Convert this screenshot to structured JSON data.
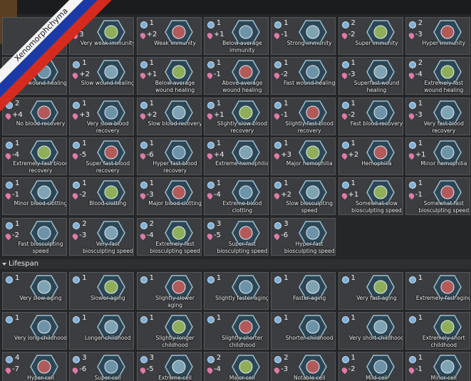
{
  "banner": "Xenomorphchyma",
  "sections": [
    {
      "genes": [
        {},
        {
          "metabolism": "3",
          "label": "Very weak immunity"
        },
        {
          "complexity": "1",
          "metabolism": "+2",
          "label": "Weak immunity"
        },
        {
          "complexity": "1",
          "metabolism": "+1",
          "label": "Below average immunity"
        },
        {
          "complexity": "1",
          "metabolism": "-1",
          "label": "Strong immunity"
        },
        {
          "complexity": "2",
          "metabolism": "-2",
          "label": "Super immunity"
        },
        {
          "complexity": "2",
          "metabolism": "-3",
          "label": "Hyper immunity"
        },
        {
          "label": "slow wound healing"
        },
        {
          "complexity": "1",
          "metabolism": "+2",
          "label": "Slow wound healing"
        },
        {
          "complexity": "1",
          "metabolism": "+1",
          "label": "Below average wound healing"
        },
        {
          "complexity": "1",
          "metabolism": "-1",
          "label": "Above average wound healing"
        },
        {
          "complexity": "1",
          "metabolism": "-2",
          "label": "Fast wound healing"
        },
        {
          "complexity": "1",
          "metabolism": "-3",
          "label": "Superfast wound healing"
        },
        {
          "complexity": "2",
          "metabolism": "-4",
          "label": "Extremely fast wound healing"
        },
        {
          "complexity": "2",
          "metabolism": "+4",
          "label": "No blood recovery"
        },
        {
          "complexity": "1",
          "metabolism": "+3",
          "label": "Very slow blood recovery"
        },
        {
          "complexity": "1",
          "metabolism": "+2",
          "label": "Slow blood recovery"
        },
        {
          "complexity": "1",
          "metabolism": "+1",
          "label": "Slightly slow blood recovery"
        },
        {
          "complexity": "1",
          "metabolism": "-1",
          "label": "Slightly fast blood recovery"
        },
        {
          "complexity": "1",
          "metabolism": "-2",
          "label": "Fast blood recovery"
        },
        {
          "complexity": "1",
          "metabolism": "-3",
          "label": "Very fast blood recovery"
        },
        {
          "complexity": "1",
          "metabolism": "-4",
          "label": "Extremely fast blood recovery"
        },
        {
          "complexity": "1",
          "metabolism": "-5",
          "label": "Super fast blood recovery"
        },
        {
          "complexity": "1",
          "metabolism": "-6",
          "label": "Hyper fast blood recovery"
        },
        {
          "complexity": "1",
          "metabolism": "+4",
          "label": "Extreme hemophilia"
        },
        {
          "complexity": "1",
          "metabolism": "+3",
          "label": "Major hemophilia"
        },
        {
          "complexity": "1",
          "metabolism": "+2",
          "label": "Hemophilia"
        },
        {
          "complexity": "1",
          "metabolism": "+1",
          "label": "Minor hemophilia"
        },
        {
          "complexity": "1",
          "metabolism": "-1",
          "label": "Minor blood clotting"
        },
        {
          "complexity": "1",
          "metabolism": "-2",
          "label": "Blood clotting"
        },
        {
          "complexity": "1",
          "metabolism": "-3",
          "label": "Major blood clotting"
        },
        {
          "complexity": "1",
          "metabolism": "-4",
          "label": "Extreme blood clotting"
        },
        {
          "complexity": "1",
          "metabolism": "+2",
          "label": "Slow biosculpting speed"
        },
        {
          "complexity": "1",
          "metabolism": "+1",
          "label": "Somewhat slow biosculpting speed"
        },
        {
          "complexity": "1",
          "metabolism": "-1",
          "label": "Somewhat fast biosculpting speed"
        },
        {
          "complexity": "1",
          "metabolism": "-2",
          "label": "Fast biosculpting speed"
        },
        {
          "complexity": "2",
          "metabolism": "-3",
          "label": "Very fast biosculpting speed"
        },
        {
          "complexity": "2",
          "metabolism": "-4",
          "label": "Extremely fast biosculpting speed"
        },
        {
          "complexity": "3",
          "metabolism": "-5",
          "label": "Super fast biosculpting speed"
        },
        {
          "complexity": "3",
          "metabolism": "-6",
          "label": "Hyper fast biosculpting speed"
        }
      ]
    },
    {
      "title": "Lifespan",
      "genes": [
        {
          "complexity": "1",
          "label": "Very slow aging"
        },
        {
          "complexity": "1",
          "label": "Slower aging"
        },
        {
          "complexity": "1",
          "label": "Slightly slower aging"
        },
        {
          "complexity": "1",
          "label": "Slightly faster aging"
        },
        {
          "complexity": "1",
          "label": "Faster aging"
        },
        {
          "complexity": "1",
          "label": "Very fast aging"
        },
        {
          "complexity": "1",
          "label": "Extremely fast aging"
        },
        {
          "complexity": "1",
          "label": "Very long childhood"
        },
        {
          "complexity": "1",
          "label": "Longer childhood"
        },
        {
          "complexity": "1",
          "label": "Slightly longer childhood"
        },
        {
          "complexity": "1",
          "label": "Slightly shorter childhood"
        },
        {
          "complexity": "1",
          "label": "Shorter childhood"
        },
        {
          "complexity": "1",
          "label": "Very short childhood"
        },
        {
          "complexity": "1",
          "label": "Extremely short childhood"
        },
        {
          "complexity": "4",
          "metabolism": "-7",
          "label": "Hyper cell"
        },
        {
          "complexity": "3",
          "metabolism": "-6",
          "label": "Super cell"
        },
        {
          "complexity": "3",
          "metabolism": "-5",
          "label": "Extreme cell"
        },
        {
          "complexity": "2",
          "metabolism": "-4",
          "label": "Major cell"
        },
        {
          "complexity": "2",
          "metabolism": "-3",
          "label": "Notable cell"
        },
        {
          "complexity": "1",
          "metabolism": "-2",
          "label": "Mild cell"
        },
        {
          "complexity": "1",
          "metabolism": "-1",
          "label": "Minor cell"
        }
      ]
    }
  ]
}
